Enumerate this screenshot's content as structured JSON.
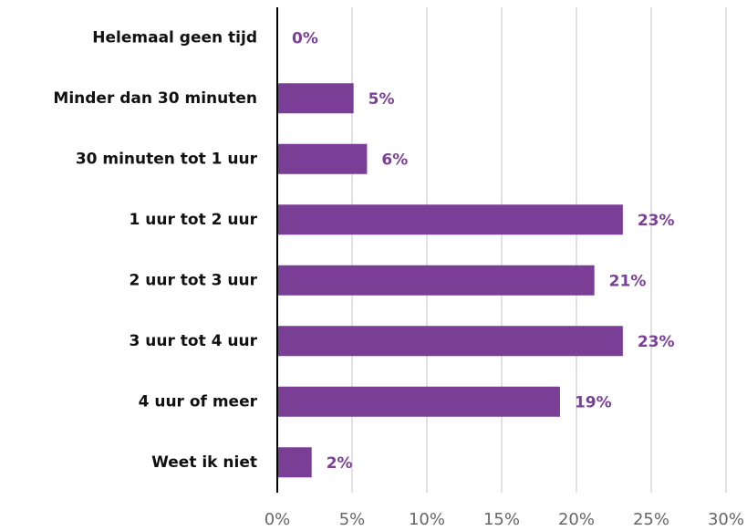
{
  "chart_data": {
    "type": "bar",
    "orientation": "horizontal",
    "categories": [
      "Helemaal geen tijd",
      "Minder dan 30 minuten",
      "30 minuten tot 1 uur",
      "1 uur tot 2 uur",
      "2 uur tot 3 uur",
      "3 uur tot 4 uur",
      "4 uur of meer",
      "Weet ik niet"
    ],
    "values": [
      0,
      5.1,
      6,
      23.1,
      21.2,
      23.1,
      18.9,
      2.3
    ],
    "value_labels": [
      "0%",
      "5%",
      "6%",
      "23%",
      "21%",
      "23%",
      "19%",
      "2%"
    ],
    "color": "#7a3e97",
    "xlim": [
      0,
      30
    ],
    "xticks": [
      {
        "value": 0,
        "label": "0%"
      },
      {
        "value": 5,
        "label": "5%"
      },
      {
        "value": 10,
        "label": "10%"
      },
      {
        "value": 15,
        "label": "15%"
      },
      {
        "value": 20,
        "label": "20%"
      },
      {
        "value": 25,
        "label": "25%"
      },
      {
        "value": 30,
        "label": "30%"
      }
    ],
    "grid": true
  }
}
